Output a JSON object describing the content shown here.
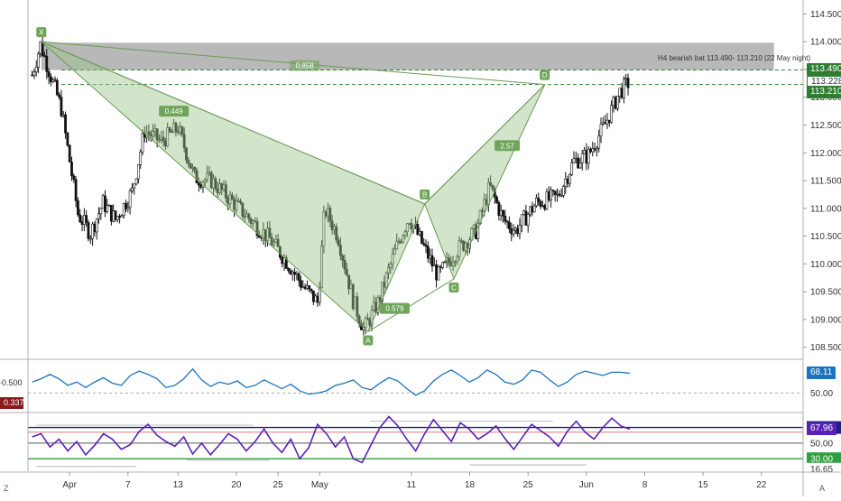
{
  "colors": {
    "green_tag": "#2e7d32",
    "navy_tag": "#1a237e",
    "rsi_blue": "#1e73be",
    "stoch_purple": "#5b21b6",
    "pattern_fill": "#9cc38a",
    "zone_gray": "#a0a0a0",
    "red_tag": "#8b1a1a"
  },
  "watermark_left": "Z",
  "watermark_right": "A",
  "chart_data": [
    {
      "type": "candlestick",
      "yaxis": {
        "ylim": [
          108.3,
          114.75
        ],
        "ticks": [
          "114.500",
          "114.000",
          "113.500",
          "113.000",
          "112.500",
          "112.000",
          "111.500",
          "111.000",
          "110.500",
          "110.000",
          "109.500",
          "109.000",
          "108.500"
        ],
        "tick_values": [
          114.5,
          114.0,
          113.5,
          113.0,
          112.5,
          112.0,
          111.5,
          111.0,
          110.5,
          110.0,
          109.5,
          109.0,
          108.5
        ]
      },
      "xaxis": {
        "ticks": [
          {
            "label": "Apr",
            "d": 0
          },
          {
            "label": "7",
            "d": 7
          },
          {
            "label": "13",
            "d": 13
          },
          {
            "label": "20",
            "d": 20
          },
          {
            "label": "25",
            "d": 25
          },
          {
            "label": "May",
            "d": 30
          },
          {
            "label": "11",
            "d": 41
          },
          {
            "label": "18",
            "d": 48
          },
          {
            "label": "25",
            "d": 55
          },
          {
            "label": "Jun",
            "d": 62
          },
          {
            "label": "8",
            "d": 69
          },
          {
            "label": "15",
            "d": 76
          },
          {
            "label": "22",
            "d": 83
          }
        ],
        "x_range_days": [
          -5,
          88
        ]
      },
      "price_path": [
        [
          -4.5,
          113.4
        ],
        [
          -3.5,
          113.95
        ],
        [
          -1,
          112.8
        ],
        [
          1,
          110.9
        ],
        [
          2.5,
          110.55
        ],
        [
          4,
          111.1
        ],
        [
          5.5,
          110.8
        ],
        [
          7.5,
          111.3
        ],
        [
          9,
          112.4
        ],
        [
          11,
          112.2
        ],
        [
          13,
          112.45
        ],
        [
          15,
          111.55
        ],
        [
          17,
          111.5
        ],
        [
          19,
          111.2
        ],
        [
          21,
          110.9
        ],
        [
          24,
          110.45
        ],
        [
          26,
          110.05
        ],
        [
          28,
          109.6
        ],
        [
          29.8,
          109.3
        ],
        [
          30.6,
          111.0
        ],
        [
          32.2,
          110.5
        ],
        [
          34,
          109.35
        ],
        [
          35.3,
          108.82
        ],
        [
          37,
          109.3
        ],
        [
          39.2,
          110.3
        ],
        [
          40.7,
          110.85
        ],
        [
          42.5,
          110.3
        ],
        [
          44.2,
          109.78
        ],
        [
          46.5,
          110.25
        ],
        [
          48.8,
          110.6
        ],
        [
          50.4,
          111.4
        ],
        [
          52,
          110.8
        ],
        [
          53.5,
          110.6
        ],
        [
          56,
          111.1
        ],
        [
          58.5,
          111.2
        ],
        [
          60.5,
          111.85
        ],
        [
          62.2,
          111.95
        ],
        [
          64.2,
          112.5
        ],
        [
          66,
          113.1
        ],
        [
          67.2,
          113.28
        ]
      ],
      "pattern": {
        "title": "H4 bearish bat 113.490- 113.210 (22 May night)",
        "points": [
          {
            "label": "X",
            "d": -3.4,
            "price": 114.0
          },
          {
            "label": "A",
            "d": 35.8,
            "price": 108.78
          },
          {
            "label": "B",
            "d": 42.6,
            "price": 111.08
          },
          {
            "label": "C",
            "d": 46.1,
            "price": 109.73
          },
          {
            "label": "D",
            "d": 57.0,
            "price": 113.228
          }
        ],
        "ratios": [
          {
            "label": "0.449",
            "d": 12.5,
            "price": 112.75
          },
          {
            "label": "0.579",
            "d": 39.0,
            "price": 109.2
          },
          {
            "label": "2.57",
            "d": 52.5,
            "price": 112.13
          },
          {
            "label": "0.858",
            "d": 28.2,
            "price": 113.57
          }
        ],
        "zone": [
          113.49,
          113.98
        ],
        "zone_end_d": 84.5
      },
      "price_tags": [
        {
          "label": "113.490",
          "value": 113.49,
          "style": "green"
        },
        {
          "label": "113.228",
          "value": 113.228,
          "style": "outline"
        },
        {
          "label": "113.210",
          "value": 113.21,
          "style": "green"
        }
      ]
    },
    {
      "type": "line",
      "series": [
        {
          "values": [
            60,
            63,
            67,
            63,
            57,
            60,
            55,
            60,
            64,
            59,
            57,
            66,
            70,
            67,
            63,
            55,
            57,
            63,
            72,
            62,
            56,
            60,
            58,
            61,
            55,
            57,
            62,
            58,
            54,
            58,
            52,
            49,
            50,
            52,
            57,
            59,
            62,
            55,
            53,
            59,
            64,
            61,
            54,
            48,
            52,
            61,
            67,
            71,
            66,
            60,
            64,
            71,
            67,
            60,
            58,
            62,
            71,
            69,
            62,
            56,
            60,
            67,
            70,
            68,
            66,
            69,
            69,
            68.11
          ]
        }
      ],
      "ticks": [
        "50.00"
      ],
      "tick_values": [
        50
      ],
      "left_labels": [
        {
          "label": "0.500",
          "value": 59.3
        },
        {
          "label": "0.337",
          "value": 41.5
        }
      ],
      "value_tag": "68.11",
      "ylim": [
        33,
        80
      ]
    },
    {
      "type": "line",
      "series": [
        {
          "values": [
            58,
            62,
            45,
            55,
            40,
            52,
            35,
            47,
            62,
            55,
            42,
            48,
            65,
            74,
            60,
            52,
            46,
            58,
            36,
            50,
            35,
            48,
            62,
            55,
            40,
            52,
            68,
            50,
            38,
            55,
            30,
            44,
            74,
            62,
            45,
            58,
            30,
            25,
            48,
            70,
            84,
            72,
            55,
            40,
            62,
            80,
            66,
            52,
            76,
            68,
            55,
            62,
            72,
            56,
            42,
            58,
            74,
            66,
            58,
            46,
            65,
            78,
            64,
            55,
            70,
            82,
            72,
            67.96
          ]
        }
      ],
      "ticks": [
        "70.00",
        "50.00",
        "30.00",
        "16.65"
      ],
      "tick_values": [
        70,
        50,
        30,
        16.65
      ],
      "value_tag": "67.96",
      "level_lines": [
        70,
        30
      ],
      "ylim": [
        14,
        88
      ]
    }
  ]
}
